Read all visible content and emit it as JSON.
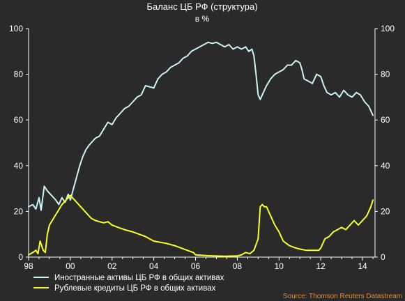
{
  "chart_data": {
    "type": "line",
    "title": "Баланс ЦБ РФ (структура)",
    "subtitle": "в %",
    "x_range": [
      1998,
      2014.6
    ],
    "ylim": [
      0,
      100
    ],
    "x_tick_values": [
      1998,
      2000,
      2002,
      2004,
      2006,
      2008,
      2010,
      2012,
      2014
    ],
    "x_tick_labels": [
      "98",
      "00",
      "02",
      "04",
      "06",
      "08",
      "10",
      "12",
      "14"
    ],
    "y_ticks": [
      0,
      20,
      40,
      60,
      80,
      100
    ],
    "grid": false,
    "legend_position": "bottom-left",
    "source": "Source: Thomson Reuters Datastream",
    "series": [
      {
        "name": "Иностранные активы ЦБ РФ в общих активах",
        "color": "#c8f4f4",
        "x": [
          1998.0,
          1998.2,
          1998.35,
          1998.5,
          1998.6,
          1998.75,
          1998.9,
          1999.0,
          1999.15,
          1999.3,
          1999.45,
          1999.6,
          1999.75,
          1999.9,
          2000.0,
          2000.15,
          2000.3,
          2000.45,
          2000.6,
          2000.75,
          2000.9,
          2001.0,
          2001.2,
          2001.4,
          2001.6,
          2001.8,
          2002.0,
          2002.2,
          2002.4,
          2002.6,
          2002.8,
          2003.0,
          2003.2,
          2003.4,
          2003.6,
          2003.8,
          2004.0,
          2004.2,
          2004.4,
          2004.6,
          2004.8,
          2005.0,
          2005.2,
          2005.4,
          2005.6,
          2005.8,
          2006.0,
          2006.2,
          2006.4,
          2006.6,
          2006.8,
          2007.0,
          2007.2,
          2007.4,
          2007.6,
          2007.8,
          2008.0,
          2008.2,
          2008.4,
          2008.55,
          2008.7,
          2008.8,
          2008.9,
          2009.0,
          2009.1,
          2009.2,
          2009.4,
          2009.6,
          2009.8,
          2010.0,
          2010.2,
          2010.4,
          2010.6,
          2010.8,
          2011.0,
          2011.1,
          2011.2,
          2011.4,
          2011.6,
          2011.8,
          2012.0,
          2012.15,
          2012.3,
          2012.5,
          2012.7,
          2012.9,
          2013.1,
          2013.3,
          2013.5,
          2013.7,
          2013.9,
          2014.1,
          2014.3,
          2014.5
        ],
        "values": [
          22,
          23,
          21,
          26,
          20.5,
          31,
          29,
          28,
          26.5,
          25,
          23,
          26,
          24,
          27.5,
          25,
          30,
          35,
          40,
          44,
          47,
          49,
          50,
          52,
          53,
          56,
          59,
          58,
          61,
          63,
          65,
          66,
          68,
          70,
          71,
          75,
          74.5,
          74,
          78,
          80,
          81,
          83,
          84,
          85,
          87,
          88,
          90,
          91,
          92,
          93,
          94,
          93.5,
          94,
          93,
          92,
          93,
          91,
          92,
          91,
          92,
          90,
          91,
          88,
          80,
          71,
          69,
          71,
          75,
          78,
          80,
          81,
          82,
          84,
          84,
          86,
          85,
          82,
          78,
          77,
          76,
          80,
          79,
          75,
          72,
          71,
          72,
          70,
          73,
          71,
          70,
          72,
          71,
          68,
          66,
          62
        ]
      },
      {
        "name": "Рублевые кредиты ЦБ РФ в общих активах",
        "color": "#ffff1e",
        "x": [
          1998.0,
          1998.2,
          1998.35,
          1998.45,
          1998.55,
          1998.7,
          1998.8,
          1998.9,
          1999.0,
          1999.2,
          1999.4,
          1999.6,
          1999.8,
          2000.0,
          2000.2,
          2000.4,
          2000.6,
          2000.8,
          2001.0,
          2001.2,
          2001.4,
          2001.6,
          2001.8,
          2002.0,
          2002.3,
          2002.6,
          2003.0,
          2003.3,
          2003.6,
          2004.0,
          2004.3,
          2004.6,
          2005.0,
          2005.3,
          2005.6,
          2005.9,
          2006.0,
          2006.3,
          2006.6,
          2007.0,
          2007.4,
          2007.8,
          2008.0,
          2008.2,
          2008.4,
          2008.6,
          2008.8,
          2009.0,
          2009.1,
          2009.2,
          2009.3,
          2009.4,
          2009.6,
          2009.8,
          2010.0,
          2010.2,
          2010.5,
          2010.8,
          2011.0,
          2011.3,
          2011.6,
          2011.9,
          2012.0,
          2012.2,
          2012.4,
          2012.6,
          2012.8,
          2013.0,
          2013.2,
          2013.4,
          2013.6,
          2013.8,
          2014.0,
          2014.2,
          2014.4,
          2014.5
        ],
        "values": [
          1,
          2,
          3,
          1.5,
          7,
          3,
          2,
          10,
          14,
          17,
          20,
          23,
          25,
          27,
          25,
          23,
          21,
          19,
          17,
          16,
          15.5,
          15,
          15.5,
          14,
          13,
          12,
          11,
          10,
          9,
          7,
          6.5,
          6,
          5,
          4,
          3,
          2,
          1,
          0.8,
          0.6,
          0.5,
          0.4,
          0.5,
          0.5,
          1,
          2,
          1.5,
          3,
          8,
          22,
          23,
          22,
          22,
          18,
          14,
          11,
          7,
          5,
          4,
          3.5,
          3,
          3,
          3,
          4,
          8,
          9,
          11,
          12,
          13,
          12,
          14,
          16,
          14,
          16,
          18,
          22,
          25
        ]
      }
    ]
  }
}
